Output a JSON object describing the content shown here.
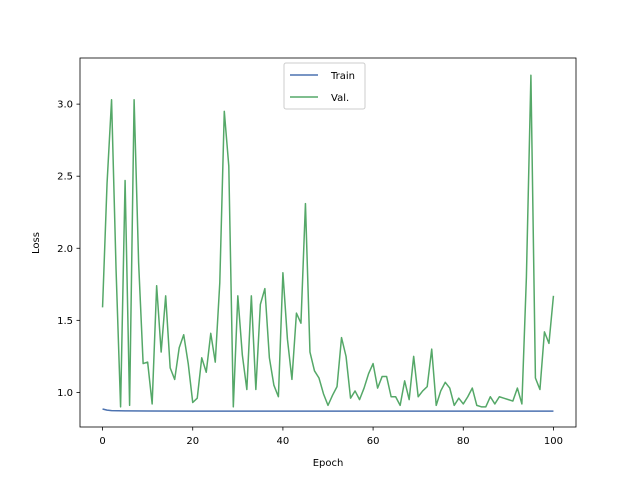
{
  "chart_data": {
    "type": "line",
    "xlabel": "Epoch",
    "ylabel": "Loss",
    "xlim": [
      -5,
      105
    ],
    "ylim": [
      0.76,
      3.32
    ],
    "xticks": [
      0,
      20,
      40,
      60,
      80,
      100
    ],
    "yticks": [
      1.0,
      1.5,
      2.0,
      2.5,
      3.0
    ],
    "xtick_labels": [
      "0",
      "20",
      "40",
      "60",
      "80",
      "100"
    ],
    "ytick_labels": [
      "1.0",
      "1.5",
      "2.0",
      "2.5",
      "3.0"
    ],
    "grid": false,
    "legend": "top-center",
    "series": [
      {
        "name": "Train",
        "color": "#4c72b0",
        "x": [
          0,
          1,
          2,
          5,
          10,
          20,
          30,
          40,
          50,
          60,
          70,
          80,
          90,
          100
        ],
        "y": [
          0.885,
          0.877,
          0.874,
          0.872,
          0.871,
          0.87,
          0.87,
          0.87,
          0.87,
          0.87,
          0.87,
          0.87,
          0.87,
          0.87
        ]
      },
      {
        "name": "Val.",
        "color": "#55a868",
        "x": [
          0,
          1,
          2,
          3,
          4,
          5,
          6,
          7,
          8,
          9,
          10,
          11,
          12,
          13,
          14,
          15,
          16,
          17,
          18,
          19,
          20,
          21,
          22,
          23,
          24,
          25,
          26,
          27,
          28,
          29,
          30,
          31,
          32,
          33,
          34,
          35,
          36,
          37,
          38,
          39,
          40,
          41,
          42,
          43,
          44,
          45,
          46,
          47,
          48,
          49,
          50,
          51,
          52,
          53,
          54,
          55,
          56,
          57,
          58,
          59,
          60,
          61,
          62,
          63,
          64,
          65,
          66,
          67,
          68,
          69,
          70,
          71,
          72,
          73,
          74,
          75,
          76,
          77,
          78,
          79,
          80,
          81,
          82,
          83,
          84,
          85,
          86,
          87,
          88,
          89,
          90,
          91,
          92,
          93,
          94,
          95,
          96,
          97,
          98,
          99,
          100
        ],
        "y": [
          1.59,
          2.45,
          3.03,
          1.85,
          0.9,
          2.47,
          0.91,
          3.03,
          1.9,
          1.2,
          1.21,
          0.92,
          1.74,
          1.28,
          1.67,
          1.17,
          1.09,
          1.31,
          1.4,
          1.2,
          0.93,
          0.96,
          1.24,
          1.14,
          1.41,
          1.21,
          1.76,
          2.95,
          2.57,
          0.9,
          1.67,
          1.26,
          1.02,
          1.67,
          1.02,
          1.61,
          1.72,
          1.24,
          1.05,
          0.97,
          1.83,
          1.37,
          1.09,
          1.55,
          1.48,
          2.31,
          1.28,
          1.15,
          1.1,
          0.99,
          0.91,
          0.98,
          1.04,
          1.38,
          1.25,
          0.96,
          1.01,
          0.95,
          1.03,
          1.13,
          1.2,
          1.03,
          1.11,
          1.11,
          0.97,
          0.97,
          0.91,
          1.08,
          0.95,
          1.25,
          0.97,
          1.01,
          1.04,
          1.3,
          0.91,
          1.01,
          1.07,
          1.03,
          0.91,
          0.96,
          0.92,
          0.97,
          1.03,
          0.91,
          0.9,
          0.9,
          0.97,
          0.92,
          0.97,
          0.96,
          0.95,
          0.94,
          1.03,
          0.92,
          1.8,
          3.2,
          1.1,
          1.02,
          1.42,
          1.34,
          1.67
        ]
      }
    ]
  }
}
